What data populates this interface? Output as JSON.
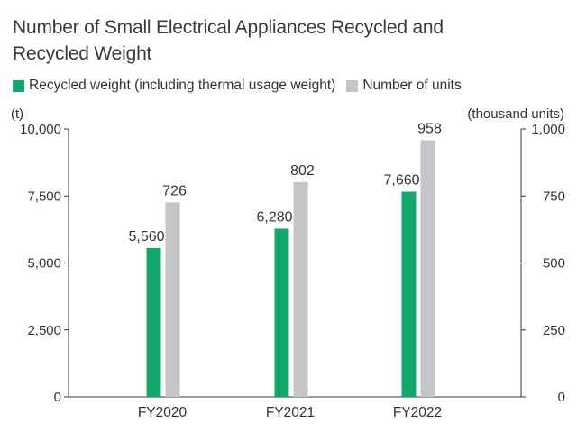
{
  "title": "Number of Small Electrical Appliances Recycled and Recycled Weight",
  "legend": {
    "recycled_weight": "Recycled weight (including thermal usage weight)",
    "units": "Number of units"
  },
  "colors": {
    "recycled_weight": "#13a86b",
    "units": "#c4c5c8",
    "axis": "#333333",
    "text": "#333333"
  },
  "chart_data": {
    "type": "bar",
    "title": "Number of Small Electrical Appliances Recycled and Recycled Weight",
    "categories": [
      "FY2020",
      "FY2021",
      "FY2022"
    ],
    "series": [
      {
        "name": "Recycled weight (including thermal usage weight)",
        "axis": "left",
        "values": [
          5560,
          6280,
          7660
        ],
        "labels": [
          "5,560",
          "6,280",
          "7,660"
        ]
      },
      {
        "name": "Number of units",
        "axis": "right",
        "values": [
          726,
          802,
          958
        ],
        "labels": [
          "726",
          "802",
          "958"
        ]
      }
    ],
    "y_left": {
      "unit": "(t)",
      "range": [
        0,
        10000
      ],
      "ticks": [
        0,
        2500,
        5000,
        7500,
        10000
      ],
      "tick_labels": [
        "0",
        "2,500",
        "5,000",
        "7,500",
        "10,000"
      ]
    },
    "y_right": {
      "unit": "(thousand units)",
      "range": [
        0,
        1000
      ],
      "ticks": [
        0,
        250,
        500,
        750,
        1000
      ],
      "tick_labels": [
        "0",
        "250",
        "500",
        "750",
        "1,000"
      ]
    },
    "grid": false,
    "legend_position": "top-left"
  }
}
